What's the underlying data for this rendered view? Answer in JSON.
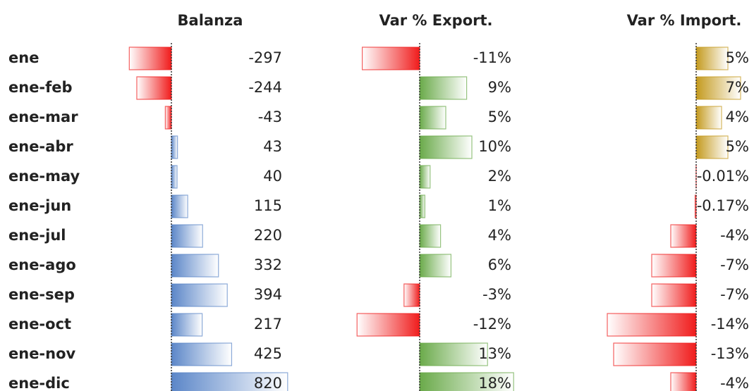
{
  "chart_data": {
    "type": "bar",
    "categories": [
      "ene",
      "ene-feb",
      "ene-mar",
      "ene-abr",
      "ene-may",
      "ene-jun",
      "ene-jul",
      "ene-ago",
      "ene-sep",
      "ene-oct",
      "ene-nov",
      "ene-dic"
    ],
    "series": [
      {
        "name": "Balanza",
        "color": "#5b86c8",
        "negative_color": "#f01c1c",
        "values": [
          -297,
          -244,
          -43,
          43,
          40,
          115,
          220,
          332,
          394,
          217,
          425,
          820
        ]
      },
      {
        "name": "Var % Export.",
        "color": "#6aaa4a",
        "negative_color": "#f01c1c",
        "values": [
          -11,
          9,
          5,
          10,
          2,
          1,
          4,
          6,
          -3,
          -12,
          13,
          18
        ],
        "value_labels": [
          "-11%",
          "9%",
          "5%",
          "10%",
          "2%",
          "1%",
          "4%",
          "6%",
          "-3%",
          "-12%",
          "13%",
          "18%"
        ]
      },
      {
        "name": "Var % Import.",
        "color": "#c49a1e",
        "negative_color": "#f01c1c",
        "values": [
          5,
          7,
          4,
          5,
          -0.01,
          -0.17,
          -4,
          -7,
          -7,
          -14,
          -13,
          -4
        ],
        "value_labels": [
          "5%",
          "7%",
          "4%",
          "5%",
          "-0.01%",
          "-0.17%",
          "-4%",
          "-7%",
          "-7%",
          "-14%",
          "-13%",
          "-4%"
        ]
      }
    ]
  }
}
